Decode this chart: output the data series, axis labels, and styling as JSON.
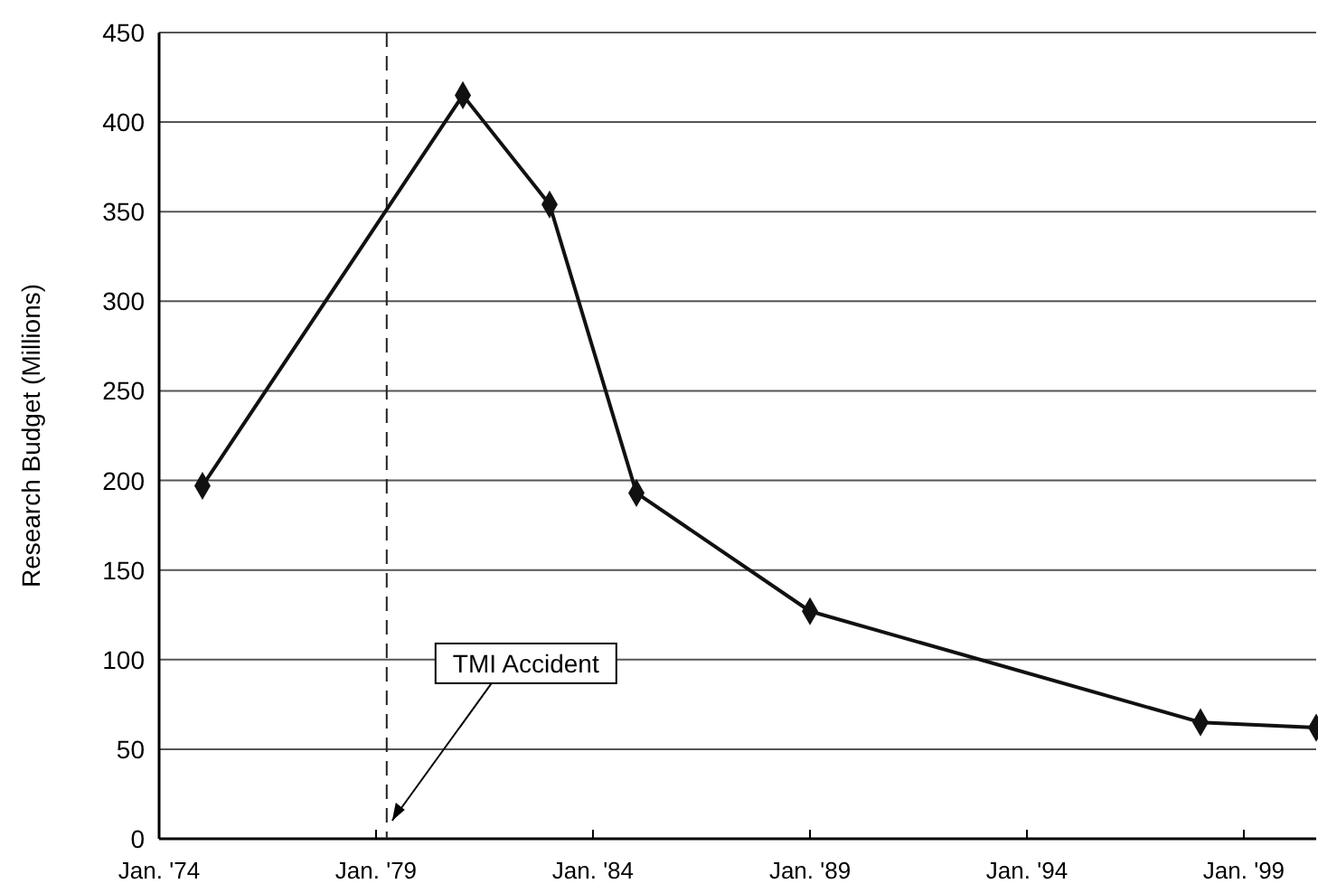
{
  "chart_data": {
    "type": "line",
    "ylabel": "Research Budget (Millions)",
    "x": [
      "1975-01",
      "1981-01",
      "1983-01",
      "1985-01",
      "1989-01",
      "1998-01",
      "2000-09"
    ],
    "series": [
      {
        "color": "#111111",
        "values": [
          197,
          415,
          354,
          193,
          127,
          65,
          62
        ]
      }
    ],
    "xlim": [
      "1974-01",
      "2000-09"
    ],
    "xticks": [
      {
        "value": "1974-01",
        "label": "Jan. '74"
      },
      {
        "value": "1979-01",
        "label": "Jan. '79"
      },
      {
        "value": "1984-01",
        "label": "Jan. '84"
      },
      {
        "value": "1989-01",
        "label": "Jan. '89"
      },
      {
        "value": "1994-01",
        "label": "Jan. '94"
      },
      {
        "value": "1999-01",
        "label": "Jan. '99"
      }
    ],
    "ylim": [
      0,
      450
    ],
    "yticks": [
      0,
      50,
      100,
      150,
      200,
      250,
      300,
      350,
      400,
      450
    ],
    "grid": "y",
    "marker": "diamond",
    "line_style": "solid",
    "ref_lines": [
      {
        "axis": "x",
        "value": "1979-04",
        "label": "TMI Accident",
        "line_style": "dashed",
        "color": "#222222"
      }
    ]
  }
}
